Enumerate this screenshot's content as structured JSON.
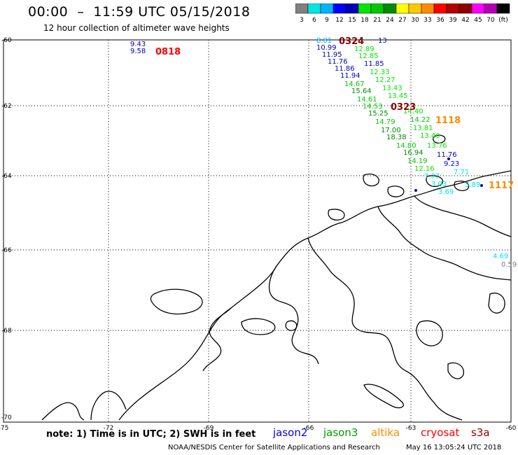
{
  "header": {
    "title": "00:00  –  11:59 UTC 05/15/2018",
    "subtitle": "12 hour collection of altimeter wave heights"
  },
  "scale": {
    "colors": [
      "#808080",
      "#00e6e6",
      "#00b4ff",
      "#0000ff",
      "#0000b4",
      "#00e600",
      "#00c800",
      "#008c00",
      "#ffff00",
      "#ffc800",
      "#ff8c00",
      "#ff0000",
      "#b40000",
      "#8c0000",
      "#ff00ff",
      "#b400b4",
      "#000000"
    ],
    "labels": [
      "3",
      "6",
      "9",
      "12",
      "15",
      "18",
      "21",
      "24",
      "27",
      "30",
      "33",
      "36",
      "39",
      "42",
      "45",
      "70",
      "(ft)"
    ]
  },
  "axes": {
    "lat_labels": [
      "-60",
      "-62",
      "-64",
      "-66",
      "-68",
      "-70"
    ],
    "lon_labels": [
      "-75",
      "-72",
      "-69",
      "-66",
      "-63",
      "-60"
    ]
  },
  "labels": {
    "times": [
      {
        "text": "0818",
        "color": "#ff0000"
      },
      {
        "text": "0324",
        "color": "#8c0000"
      },
      {
        "text": "0323",
        "color": "#8c0000"
      },
      {
        "text": "1118",
        "color": "#ff8c00"
      },
      {
        "text": "1117",
        "color": "#ff8c00"
      }
    ],
    "swh": [
      {
        "text": "9.43",
        "color": "#0000b4"
      },
      {
        "text": "9.58",
        "color": "#0000b4"
      },
      {
        "text": "8.81",
        "color": "#00b4ff"
      },
      {
        "text": "10.99",
        "color": "#0000b4"
      },
      {
        "text": "11.95",
        "color": "#0000b4"
      },
      {
        "text": "11.76",
        "color": "#0000b4"
      },
      {
        "text": "11.86",
        "color": "#0000b4"
      },
      {
        "text": "11.94",
        "color": "#0000b4"
      },
      {
        "text": "14.67",
        "color": "#00c800"
      },
      {
        "text": "15.64",
        "color": "#008c00"
      },
      {
        "text": "14.61",
        "color": "#00c800"
      },
      {
        "text": "14.53",
        "color": "#00c800"
      },
      {
        "text": "15.25",
        "color": "#008c00"
      },
      {
        "text": "14.79",
        "color": "#00c800"
      },
      {
        "text": "17.00",
        "color": "#008c00"
      },
      {
        "text": "18.38",
        "color": "#008c00"
      },
      {
        "text": "14.80",
        "color": "#00c800"
      },
      {
        "text": "16.94",
        "color": "#008c00"
      },
      {
        "text": "14.19",
        "color": "#00c800"
      },
      {
        "text": "12.16",
        "color": "#00e600"
      },
      {
        "text": "7.77",
        "color": "#00e6e6"
      },
      {
        "text": "3.03",
        "color": "#00e6e6"
      },
      {
        "text": "3.69",
        "color": "#00e6e6"
      },
      {
        "text": "13",
        "color": "#0000b4"
      },
      {
        "text": "12.89",
        "color": "#00e600"
      },
      {
        "text": "12.85",
        "color": "#00e600"
      },
      {
        "text": "11.85",
        "color": "#0000b4"
      },
      {
        "text": "12.33",
        "color": "#00e600"
      },
      {
        "text": "12.27",
        "color": "#00e600"
      },
      {
        "text": "13.43",
        "color": "#00e600"
      },
      {
        "text": "13.45",
        "color": "#00e600"
      },
      {
        "text": "14.40",
        "color": "#00e600"
      },
      {
        "text": "14.22",
        "color": "#00c800"
      },
      {
        "text": "13.81",
        "color": "#00e600"
      },
      {
        "text": "13.40",
        "color": "#00e600"
      },
      {
        "text": "13.76",
        "color": "#00e600"
      },
      {
        "text": "11.76",
        "color": "#0000b4"
      },
      {
        "text": "9.23",
        "color": "#0000ff"
      },
      {
        "text": "7.71",
        "color": "#00e6e6"
      },
      {
        "text": "3.89",
        "color": "#00e6e6"
      },
      {
        "text": "4.69",
        "color": "#00e6e6"
      },
      {
        "text": "0.59",
        "color": "#808080"
      }
    ]
  },
  "footer": {
    "note": "note: 1) Time is in UTC; 2) SWH is in feet",
    "satellites": [
      {
        "name": "jason2",
        "color": "#0000ff"
      },
      {
        "name": "jason3",
        "color": "#00a000"
      },
      {
        "name": "altika",
        "color": "#ff8c00"
      },
      {
        "name": "cryosat",
        "color": "#ff0000"
      },
      {
        "name": "s3a",
        "color": "#8c0000"
      }
    ],
    "credit": "NOAA/NESDIS Center for Satellite Applications and Research",
    "timestamp": "May 16 13:05:24 UTC 2018"
  }
}
